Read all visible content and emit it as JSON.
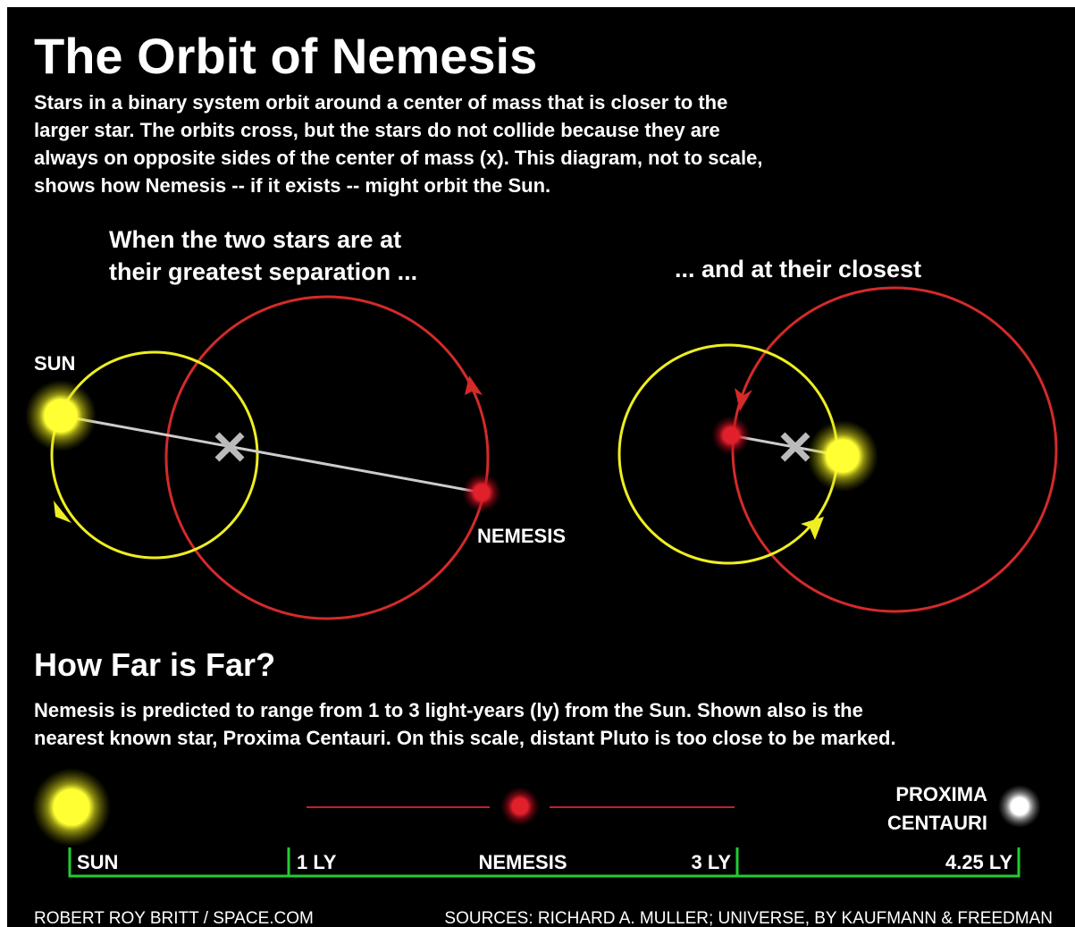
{
  "title": "The Orbit of Nemesis",
  "intro": [
    "Stars in a binary system orbit around a center of mass that is closer to the",
    "larger star. The orbits cross, but the stars do not collide because they are",
    "always on opposite sides of the center of mass (x). This diagram, not to scale,",
    "shows how Nemesis -- if it exists -- might orbit the Sun."
  ],
  "orbit_diagram": {
    "separation_caption": [
      "When the two stars are at",
      "their greatest separation ..."
    ],
    "closest_caption": "... and at their closest",
    "sun_label": "SUN",
    "nemesis_label": "NEMESIS"
  },
  "distance_section": {
    "heading": "How Far is Far?",
    "text": [
      "Nemesis is predicted to range from 1 to 3 light-years (ly) from the Sun. Shown also is the",
      "nearest known star, Proxima Centauri. On this scale, distant Pluto is too close to be marked."
    ],
    "proxima_label": [
      "PROXIMA",
      "CENTAURI"
    ],
    "scale_labels": [
      "SUN",
      "1 LY",
      "NEMESIS",
      "3 LY",
      "4.25 LY"
    ]
  },
  "credits": {
    "author": "ROBERT ROY BRITT / SPACE.COM",
    "sources": "SOURCES: RICHARD A. MULLER; UNIVERSE, BY KAUFMANN & FREEDMAN"
  }
}
